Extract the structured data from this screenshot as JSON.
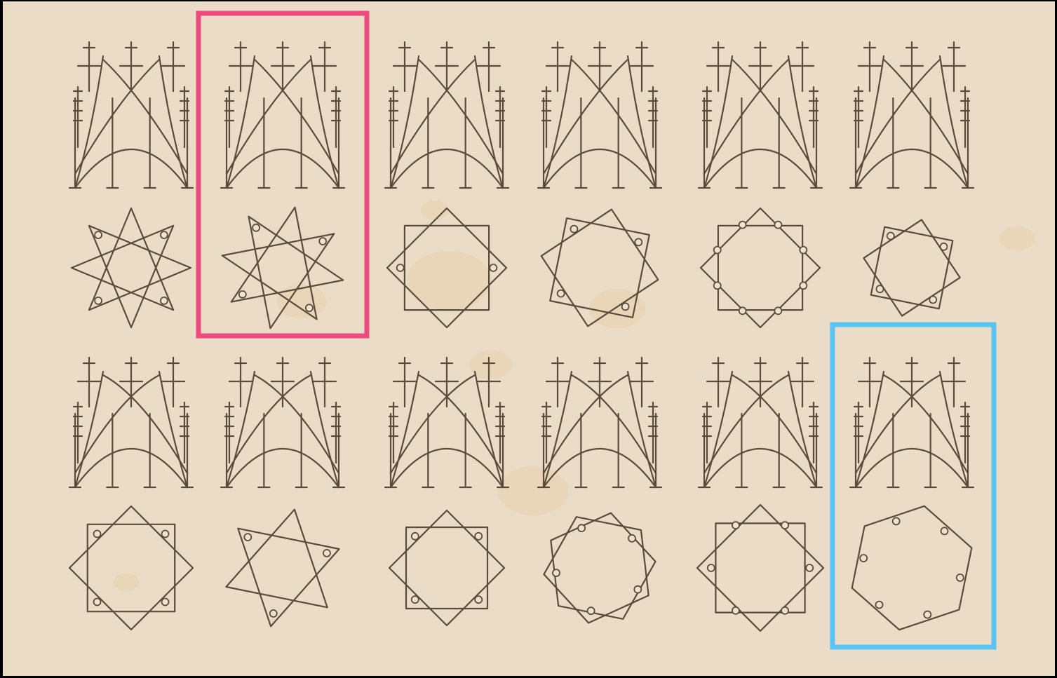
{
  "page": {
    "paper_color": "#eadcc6",
    "ink_color": "#5a4c3a",
    "stain_color": "#e8b77a"
  },
  "rows": [
    {
      "figures": [
        {
          "star": {
            "points": 8,
            "skip": 3,
            "step": 2,
            "rings": 4
          }
        },
        {
          "star": {
            "points": 8,
            "skip": 3,
            "step": 2,
            "rings": 4
          }
        },
        {
          "star": {
            "points": 4,
            "skip": 1,
            "step": 1,
            "rings": 2
          }
        },
        {
          "star": {
            "points": 4,
            "skip": 1,
            "step": 1,
            "rings": 4
          }
        },
        {
          "star": {
            "points": 4,
            "skip": 1,
            "step": 1,
            "rings": 8
          }
        },
        {
          "star": {
            "points": 4,
            "skip": 1,
            "step": 1,
            "rings": 4
          }
        }
      ]
    },
    {
      "figures": [
        {
          "star": {
            "points": 4,
            "skip": 1,
            "step": 1,
            "rings": 4
          }
        },
        {
          "star": {
            "points": 3,
            "skip": 1,
            "step": 1,
            "rings": 3
          }
        },
        {
          "star": {
            "points": 4,
            "skip": 1,
            "step": 1,
            "rings": 4
          }
        },
        {
          "star": {
            "points": 5,
            "skip": 1,
            "step": 1,
            "rings": 5
          }
        },
        {
          "star": {
            "points": 4,
            "skip": 1,
            "step": 1,
            "rings": 6
          }
        },
        {
          "star": {
            "points": 6,
            "skip": 1,
            "step": 1,
            "rings": 6
          }
        }
      ]
    }
  ],
  "highlights": [
    {
      "name": "highlight-box-pink",
      "color": "#ea4c80"
    },
    {
      "name": "highlight-box-blue",
      "color": "#5bc3f2"
    }
  ]
}
